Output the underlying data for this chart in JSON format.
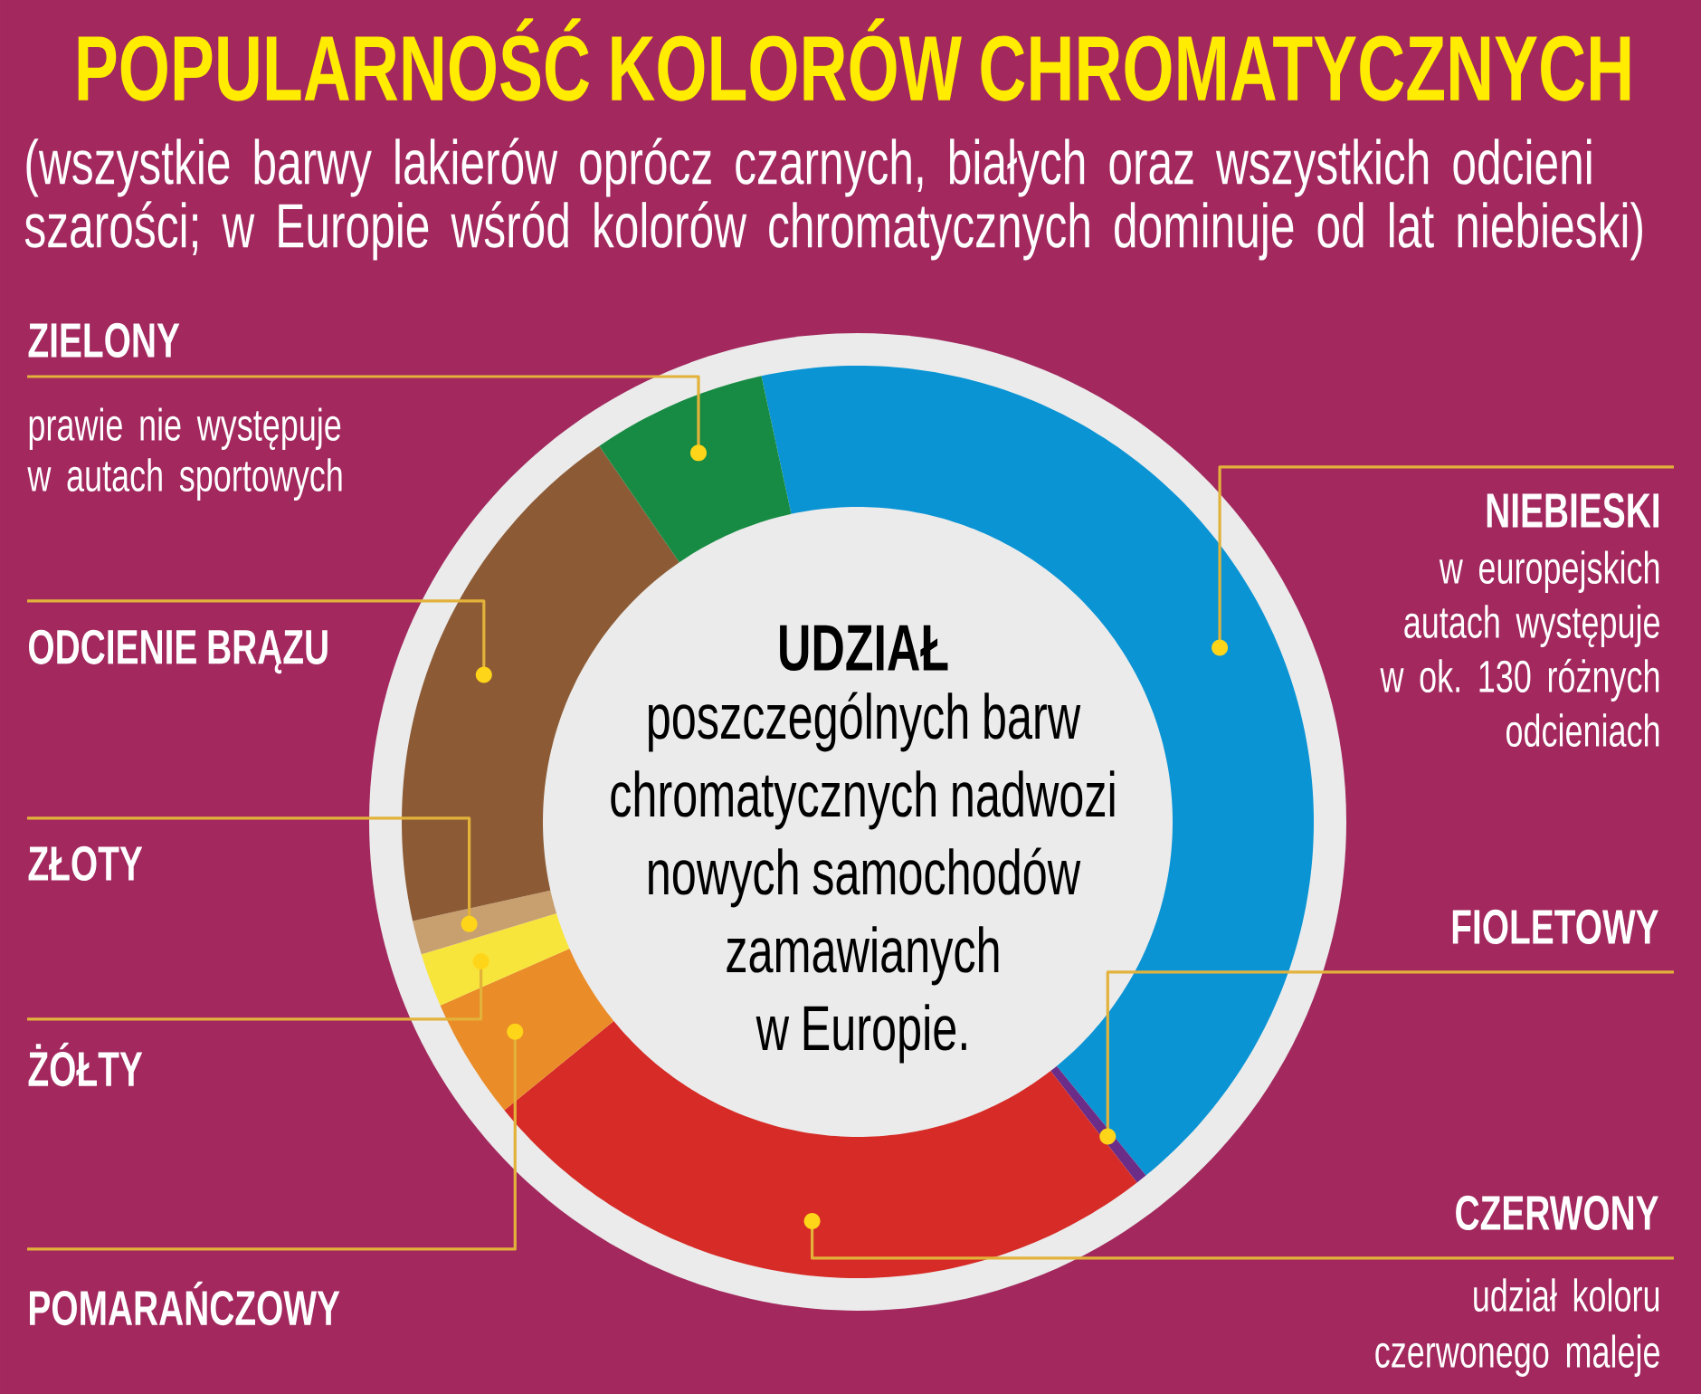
{
  "chart_data": {
    "type": "donut",
    "title": "POPULARNOŚĆ KOLORÓW CHROMATYCZNYCH",
    "subtitle": "(wszystkie barwy lakierów oprócz czarnych, białych oraz wszystkich odcieni szarości; w Europie wśród kolorów chromatycznych dominuje od lat niebieski)",
    "categories": [
      "NIEBIESKI",
      "FIOLETOWY",
      "CZERWONY",
      "POMARAŃCZOWY",
      "ŻÓŁTY",
      "ZŁOTY",
      "ODCIENIE BRĄZU",
      "ZIELONY"
    ],
    "values": [
      42.5,
      0.4,
      24.6,
      4.3,
      1.9,
      1.2,
      18.9,
      6.2
    ],
    "colors": [
      "#0a94d4",
      "#6b2d87",
      "#d62b26",
      "#ea8c27",
      "#f7e53b",
      "#c89f6e",
      "#8c5b35",
      "#178b43"
    ],
    "annotations": [
      "UDZIAŁ",
      "poszczególnych barw chromatycznych nadwozi nowych samochodów zamawianych w Europie.",
      "w europejskich autach występuje w ok. 130 różnych odcieniach",
      "udział koloru czerwonego maleje",
      "prawie nie występuje w autach sportowych"
    ]
  }
}
